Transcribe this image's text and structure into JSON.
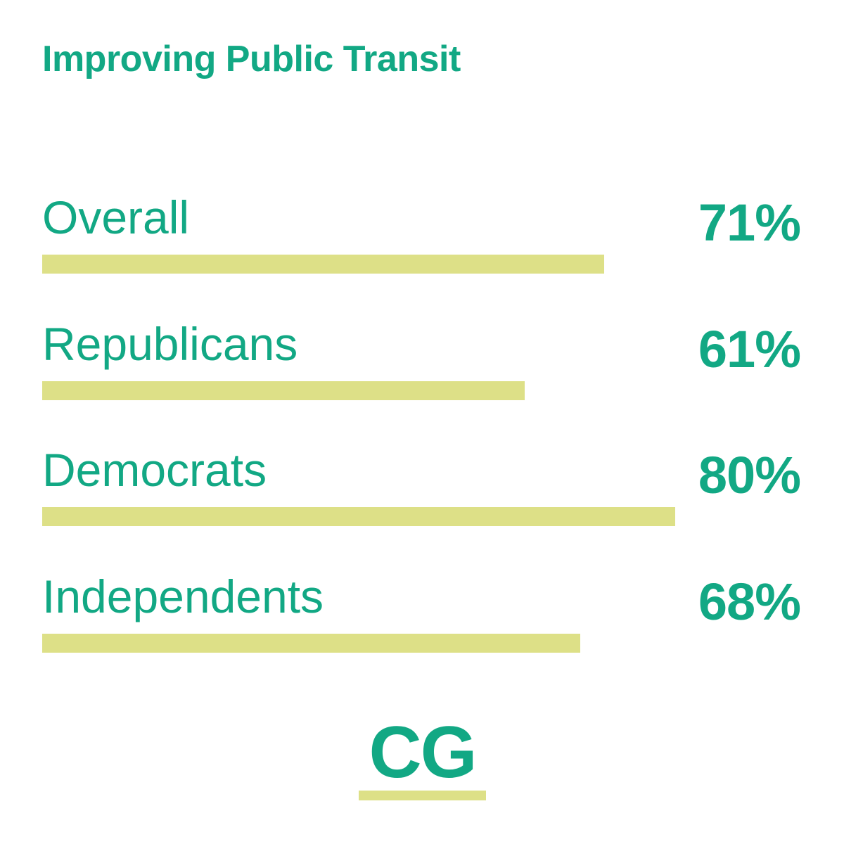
{
  "chart_data": {
    "type": "bar",
    "title": "Improving Public Transit",
    "categories": [
      "Overall",
      "Republicans",
      "Democrats",
      "Independents"
    ],
    "values": [
      71,
      61,
      80,
      68
    ],
    "value_labels": [
      "71%",
      "61%",
      "80%",
      "68%"
    ],
    "ylim": [
      0,
      100
    ],
    "orientation": "horizontal",
    "grid": false
  },
  "logo": {
    "text": "CG"
  },
  "colors": {
    "text": "#12a884",
    "bar": "#dde087",
    "background": "#ffffff"
  }
}
